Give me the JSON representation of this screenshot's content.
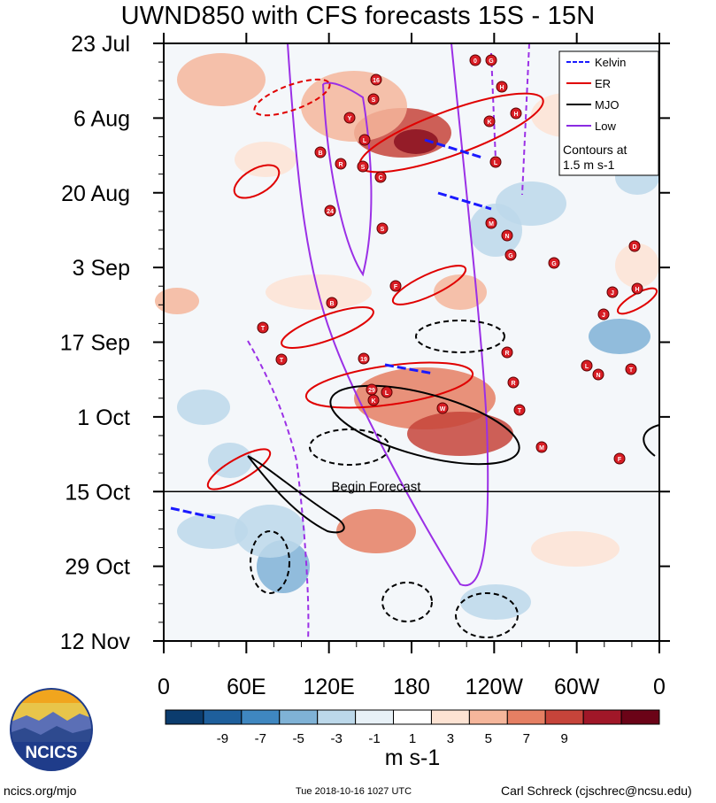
{
  "title": "UWND850 with CFS forecasts  15S - 15N",
  "footer": {
    "left": "ncics.org/mjo",
    "center": "Tue 2018-10-16 1027 UTC",
    "right": "Carl Schreck (cjschrec@ncsu.edu)"
  },
  "logo_text": "NCICS",
  "begin_forecast_label": "Begin Forecast",
  "chart_data": {
    "type": "heatmap",
    "title": "UWND850 with CFS forecasts  15S - 15N",
    "x_ticks": [
      "0",
      "60E",
      "120E",
      "180",
      "120W",
      "60W",
      "0"
    ],
    "x_tick_longitudes": [
      0,
      60,
      120,
      180,
      240,
      300,
      360
    ],
    "y_ticks": [
      "23 Jul",
      "6 Aug",
      "20 Aug",
      "3 Sep",
      "17 Sep",
      "1 Oct",
      "15 Oct",
      "29 Oct",
      "12 Nov"
    ],
    "y_range": [
      "2018-07-23",
      "2018-11-12"
    ],
    "forecast_start": "2018-10-15",
    "colorbar": {
      "label": "m s-1",
      "tick_labels": [
        "-9",
        "-7",
        "-5",
        "-3",
        "-1",
        "1",
        "3",
        "5",
        "7",
        "9"
      ],
      "colors": [
        "#0b3c6e",
        "#1e5f9c",
        "#3f87c0",
        "#7fb2d6",
        "#bcd8ea",
        "#e8f1f7",
        "#ffffff",
        "#fde3d3",
        "#f5b69b",
        "#e57f63",
        "#c6443a",
        "#a01728",
        "#6b0317"
      ]
    },
    "legend": {
      "entries": [
        {
          "label": "Kelvin",
          "color": "#1a1aff",
          "style": "dashed"
        },
        {
          "label": "ER",
          "color": "#e00000",
          "style": "solid"
        },
        {
          "label": "MJO",
          "color": "#000000",
          "style": "solid"
        },
        {
          "label": "Low",
          "color": "#8a2be2",
          "style": "solid"
        }
      ],
      "note": "Contours at\n1.5 m s-1",
      "placement": "top-right"
    },
    "storm_labels": [
      "0",
      "G",
      "16",
      "H",
      "S",
      "Y",
      "K",
      "H",
      "L",
      "B",
      "R",
      "S",
      "C",
      "L",
      "24",
      "S",
      "M",
      "N",
      "G",
      "G",
      "D",
      "B",
      "F",
      "H",
      "J",
      "J",
      "T",
      "T",
      "19",
      "R",
      "29",
      "L",
      "K",
      "W",
      "R",
      "M",
      "L",
      "N",
      "T",
      "F",
      "T"
    ]
  }
}
